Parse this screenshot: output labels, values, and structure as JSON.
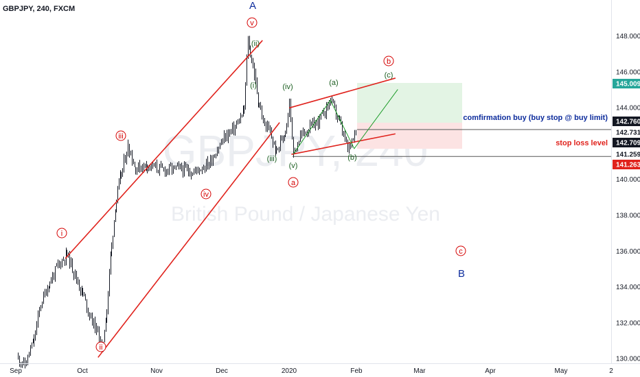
{
  "header": {
    "symbol_label": "GBPJPY, 240, FXCM"
  },
  "watermark": {
    "symbol": "GBPJPY, 240",
    "description": "British Pound / Japanese Yen"
  },
  "colors": {
    "candles": "#131722",
    "channel": "#e0221c",
    "red_label": "#d50000",
    "green_label": "#1b5e20",
    "blue_label": "#0d2c9c",
    "target": "#1e9c2a",
    "stop": "#e0221c"
  },
  "price_axis": {
    "ticks": [
      "148.000",
      "146.000",
      "144.000",
      "142.000",
      "140.000",
      "138.000",
      "136.000",
      "134.000",
      "132.000",
      "130.000"
    ],
    "tags": [
      {
        "text": "145.009",
        "bg": "#26a69a",
        "fg": "#ffffff"
      },
      {
        "text": "142.760",
        "bg": "#131722",
        "fg": "#ffffff"
      },
      {
        "text": "142.731",
        "bg": "#ffffff",
        "fg": "#131722"
      },
      {
        "text": "142.709",
        "bg": "#131722",
        "fg": "#ffffff"
      },
      {
        "text": "141.259",
        "bg": "#ffffff",
        "fg": "#131722"
      },
      {
        "text": "141.263",
        "bg": "#e0221c",
        "fg": "#ffffff"
      }
    ]
  },
  "time_axis": {
    "labels": [
      "Sep",
      "Oct",
      "Nov",
      "Dec",
      "2020",
      "Feb",
      "Mar",
      "Apr",
      "May",
      "2"
    ]
  },
  "annotations": {
    "confirmation": "comfirmation buy (buy stop @ buy limit)",
    "stop_loss": "stop loss level"
  },
  "wave_labels": {
    "red": [
      "i",
      "ii",
      "iii",
      "iv",
      "v"
    ],
    "red_filled": [
      "a",
      "b",
      "c"
    ],
    "green": [
      "(i)",
      "(ii)",
      "(iii)",
      "(iv)",
      "(v)",
      "(a)",
      "(b)",
      "(c)"
    ],
    "blue": [
      "A",
      "B"
    ]
  },
  "chart_data": {
    "type": "candlestick",
    "title": "GBPJPY, 240, FXCM",
    "xlabel": "",
    "ylabel": "",
    "ylim": [
      129.2,
      149.2
    ],
    "x_ticks": [
      "Sep",
      "Oct",
      "Nov",
      "Dec",
      "2020",
      "Feb",
      "Mar",
      "Apr",
      "May",
      "2"
    ],
    "series": [
      {
        "name": "GBPJPY",
        "points": [
          [
            "Sep 02",
            130.0
          ],
          [
            "Sep 05",
            129.6
          ],
          [
            "Sep 09",
            131.0
          ],
          [
            "Sep 12",
            133.0
          ],
          [
            "Sep 16",
            134.2
          ],
          [
            "Sep 20",
            135.2
          ],
          [
            "Sep 24",
            135.8
          ],
          [
            "Sep 27",
            134.8
          ],
          [
            "Oct 01",
            133.6
          ],
          [
            "Oct 04",
            132.4
          ],
          [
            "Oct 08",
            131.2
          ],
          [
            "Oct 09",
            130.3
          ],
          [
            "Oct 11",
            132.6
          ],
          [
            "Oct 13",
            136.2
          ],
          [
            "Oct 15",
            138.8
          ],
          [
            "Oct 17",
            140.2
          ],
          [
            "Oct 20",
            141.9
          ],
          [
            "Oct 23",
            140.6
          ],
          [
            "Oct 28",
            140.8
          ],
          [
            "Nov 04",
            140.5
          ],
          [
            "Nov 11",
            140.6
          ],
          [
            "Nov 18",
            140.4
          ],
          [
            "Nov 25",
            140.9
          ],
          [
            "Dec 02",
            142.3
          ],
          [
            "Dec 07",
            142.9
          ],
          [
            "Dec 11",
            143.7
          ],
          [
            "Dec 13",
            147.9
          ],
          [
            "Dec 14",
            147.0
          ],
          [
            "Dec 16",
            145.8
          ],
          [
            "Dec 18",
            144.2
          ],
          [
            "Dec 20",
            143.2
          ],
          [
            "Dec 23",
            142.6
          ],
          [
            "Dec 26",
            141.5
          ],
          [
            "Dec 30",
            142.7
          ],
          [
            "Jan 01",
            144.3
          ],
          [
            "Jan 03",
            141.4
          ],
          [
            "Jan 06",
            142.4
          ],
          [
            "Jan 10",
            142.8
          ],
          [
            "Jan 15",
            143.3
          ],
          [
            "Jan 20",
            144.4
          ],
          [
            "Jan 24",
            143.2
          ],
          [
            "Jan 28",
            141.6
          ],
          [
            "Jan 31",
            142.7
          ],
          [
            "Feb 01",
            142.5
          ]
        ]
      }
    ],
    "channels": [
      {
        "name": "impulse channel",
        "lines": [
          [
            [
              "Sep 25",
              135.8
            ],
            [
              "Dec 18",
              147.5
            ]
          ],
          [
            [
              "Oct 09",
              130.3
            ],
            [
              "Dec 26",
              142.9
            ]
          ]
        ]
      },
      {
        "name": "b-wave channel",
        "lines": [
          [
            [
              "Jan 02",
              144.0
            ],
            [
              "Feb 18",
              145.6
            ]
          ],
          [
            [
              "Jan 03",
              141.4
            ],
            [
              "Feb 18",
              142.5
            ]
          ]
        ]
      }
    ],
    "levels": [
      {
        "label": "comfirmation buy (buy stop @ buy limit)",
        "price": 142.76
      },
      {
        "label": "stop loss level",
        "price": 141.259
      }
    ],
    "trade_zone": {
      "entry": 142.76,
      "target": 145.009,
      "stop": 141.263
    }
  }
}
